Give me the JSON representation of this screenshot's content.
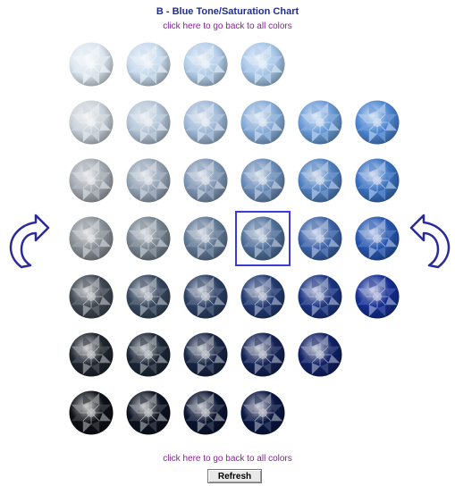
{
  "header": {
    "title": "B - Blue Tone/Saturation Chart",
    "back_link_top": "click here to go back to all colors"
  },
  "footer": {
    "back_link_bottom": "click here to go back to all colors",
    "refresh_label": "Refresh"
  },
  "colors": {
    "title": "#1f2f8f",
    "link": "#8a1f9a",
    "selection": "#3b3bd6",
    "arrow": "#2a2a9a"
  },
  "gem_grid": {
    "rows": [
      [
        "#dce6ef",
        "#c6d9ec",
        "#b3cde8",
        "#a6c6e8"
      ],
      [
        "#c8d0d8",
        "#b3c4d6",
        "#9fb8d6",
        "#86acd8",
        "#6a9bd6",
        "#4d86d2"
      ],
      [
        "#a4aab2",
        "#94a4b6",
        "#7f96b4",
        "#6a8cb8",
        "#5181c0",
        "#3a72c2"
      ],
      [
        "#8a9098",
        "#75838f",
        "#607895",
        "#4f6f9a",
        "#3b62a8",
        "#2656b0"
      ],
      [
        "#3f4752",
        "#35465c",
        "#2b4065",
        "#223a72",
        "#1b3482",
        "#142e93"
      ],
      [
        "#1f252e",
        "#1b2636",
        "#172544",
        "#132255",
        "#102066"
      ],
      [
        "#0c1016",
        "#0c1220",
        "#0a1430",
        "#081642"
      ]
    ],
    "selected": {
      "row": 3,
      "col": 3
    }
  },
  "icons": {
    "left_arrow": "curved-arrow-left-icon",
    "right_arrow": "curved-arrow-right-icon",
    "gem": "gemstone-icon"
  }
}
